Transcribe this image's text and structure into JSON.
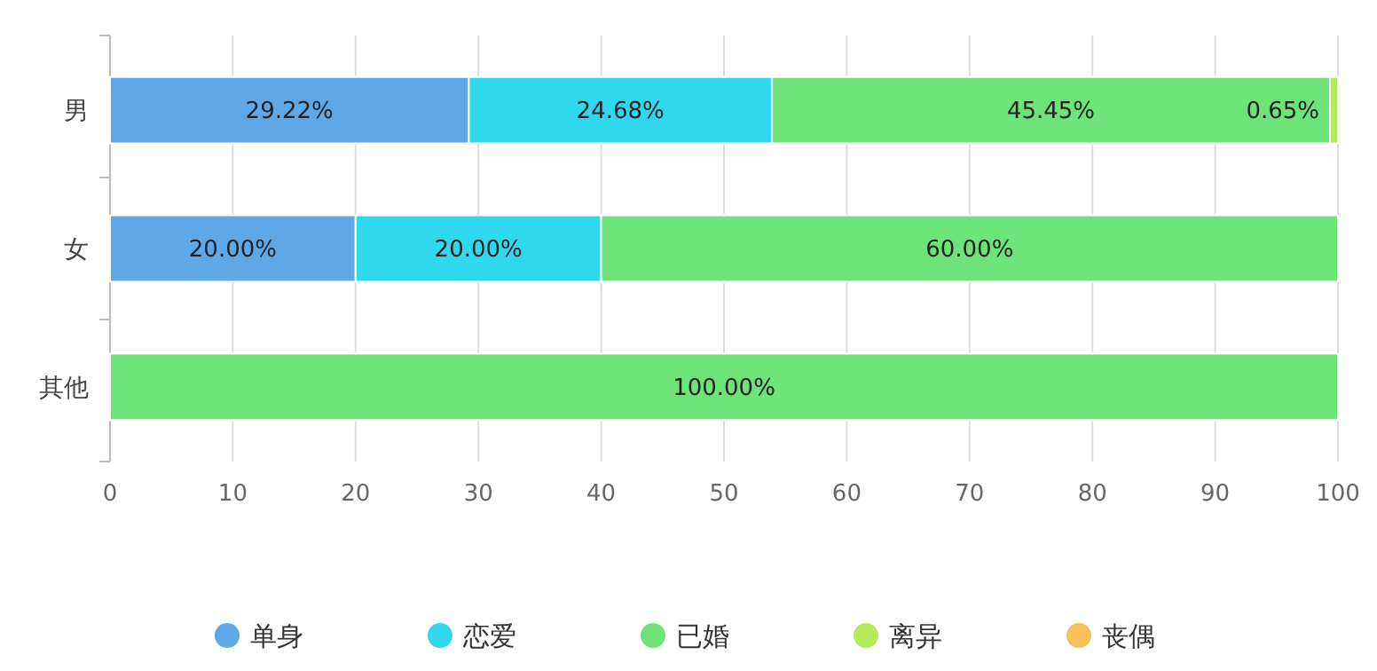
{
  "chart_data": {
    "type": "bar",
    "orientation": "horizontal",
    "stacked": true,
    "categories": [
      "男",
      "女",
      "其他"
    ],
    "series": [
      {
        "name": "单身",
        "color": "#5fa8e8",
        "values": [
          29.22,
          20,
          0
        ],
        "value_labels": [
          "29.22%",
          "20.00%",
          null
        ]
      },
      {
        "name": "恋爱",
        "color": "#2fd8ec",
        "values": [
          24.68,
          20,
          0
        ],
        "value_labels": [
          "24.68%",
          "20.00%",
          null
        ]
      },
      {
        "name": "已婚",
        "color": "#6de37a",
        "values": [
          45.45,
          60,
          100
        ],
        "value_labels": [
          "45.45%",
          "60.00%",
          "100.00%"
        ]
      },
      {
        "name": "离异",
        "color": "#b6ea5e",
        "values": [
          0.65,
          0,
          0
        ],
        "value_labels": [
          "0.65%",
          null,
          null
        ]
      },
      {
        "name": "丧偶",
        "color": "#f5c15a",
        "values": [
          0,
          0,
          0
        ],
        "value_labels": [
          null,
          null,
          null
        ]
      }
    ],
    "xlim": [
      0,
      100
    ],
    "xticks": [
      0,
      10,
      20,
      30,
      40,
      50,
      60,
      70,
      80,
      90,
      100
    ],
    "grid": "x",
    "legend": "bottom"
  }
}
